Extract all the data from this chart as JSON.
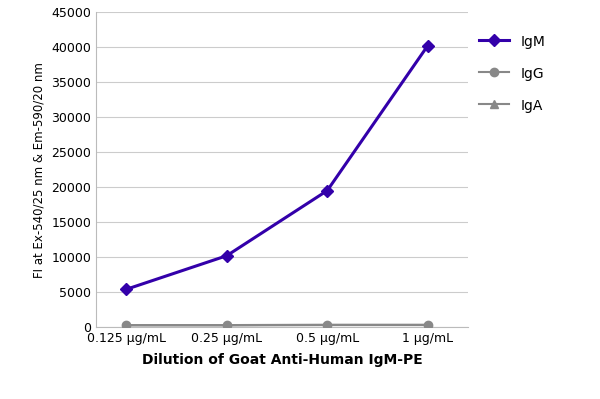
{
  "x_labels": [
    "0.125 μg/mL",
    "0.25 μg/mL",
    "0.5 μg/mL",
    "1 μg/mL"
  ],
  "x_values": [
    0,
    1,
    2,
    3
  ],
  "IgM_values": [
    5400,
    10200,
    19500,
    40200
  ],
  "IgG_values": [
    300,
    300,
    350,
    350
  ],
  "IgA_values": [
    250,
    250,
    300,
    300
  ],
  "IgM_color": "#3300aa",
  "IgG_color": "#888888",
  "IgA_color": "#888888",
  "ylabel": "FI at Ex-540/25 nm & Em-590/20 nm",
  "xlabel": "Dilution of Goat Anti-Human IgM-PE",
  "ylim": [
    0,
    45000
  ],
  "yticks": [
    0,
    5000,
    10000,
    15000,
    20000,
    25000,
    30000,
    35000,
    40000,
    45000
  ],
  "background_color": "#ffffff",
  "grid_color": "#cccccc",
  "legend_labels": [
    "IgM",
    "IgG",
    "IgA"
  ]
}
